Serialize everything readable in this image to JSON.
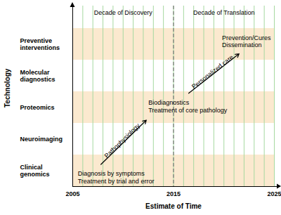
{
  "chart_data": {
    "type": "timeline",
    "xlabel": "Estimate of Time",
    "ylabel": "Technology",
    "xlim": [
      2005,
      2025
    ],
    "xticks": [
      2005,
      2015,
      2025
    ],
    "grid": true,
    "minor_xticks": [
      2006,
      2007,
      2008,
      2009,
      2010,
      2011,
      2012,
      2013,
      2014,
      2016,
      2017,
      2018,
      2019,
      2020,
      2021,
      2022,
      2023,
      2024
    ],
    "categories": [
      "Clinical genomics",
      "Neuroimaging",
      "Proteomics",
      "Molecular diagnostics",
      "Preventive interventions"
    ],
    "colors": [
      "#fbe9cf",
      "#ffffff",
      "#fbe9cf",
      "#ffffff",
      "#fbe9cf"
    ],
    "periods": [
      {
        "label": "Decade of Discovery",
        "start": 2005,
        "end": 2015
      },
      {
        "label": "Decade of Translation",
        "start": 2015,
        "end": 2025
      }
    ],
    "divider": 2015,
    "arrows": [
      {
        "label": "Pathophysiology",
        "x1": 2007.8,
        "y1": 0.7,
        "x2": 2012.3,
        "y2": 2.1
      },
      {
        "label": "Personalized care",
        "x1": 2016.5,
        "y1": 2.95,
        "x2": 2021.5,
        "y2": 4.2
      }
    ],
    "annotations": [
      {
        "lines": [
          "Diagnosis by symptoms",
          "Treatment by trial and error"
        ],
        "x": 2005.5,
        "y": 0.3
      },
      {
        "lines": [
          "Biodiagnostics",
          "Treatment of core pathology"
        ],
        "x": 2012.5,
        "y": 2.55
      },
      {
        "lines": [
          "Prevention/Cures",
          "Dissemination"
        ],
        "x": 2019.8,
        "y": 4.6
      }
    ]
  }
}
